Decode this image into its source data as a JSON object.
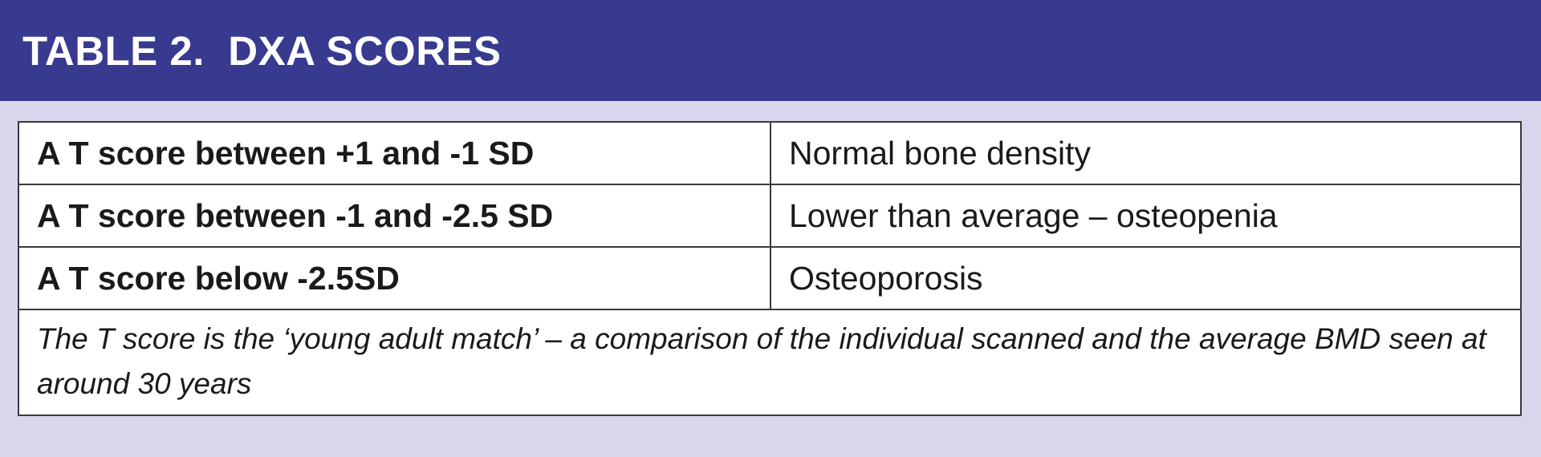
{
  "header": {
    "title": "TABLE 2.  DXA SCORES"
  },
  "table": {
    "rows": [
      [
        "A T score between +1 and -1 SD",
        "Normal bone density"
      ],
      [
        "A T score between -1 and -2.5 SD",
        "Lower than average – osteopenia"
      ],
      [
        "A T score below -2.5SD",
        "Osteoporosis"
      ]
    ],
    "note": "The T score is the ‘young adult match’ – a comparison of the individual scanned and the average BMD seen at around 30 years"
  }
}
